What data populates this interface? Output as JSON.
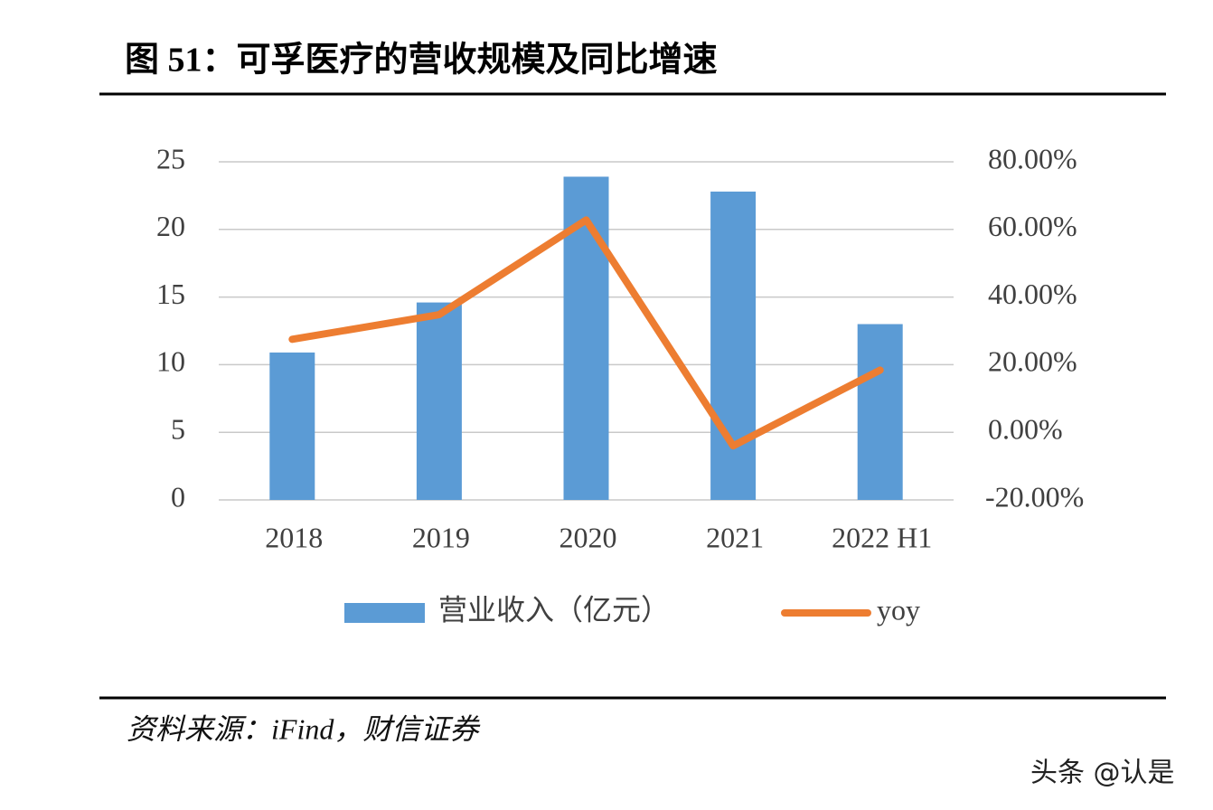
{
  "chart_data": {
    "type": "bar",
    "title": "图 51：可孚医疗的营收规模及同比增速",
    "categories": [
      "2018",
      "2019",
      "2020",
      "2021",
      "2022 H1"
    ],
    "series": [
      {
        "name": "营业收入（亿元）",
        "type": "bar",
        "color": "#5b9bd5",
        "values": [
          10.9,
          14.6,
          23.9,
          22.8,
          13.0
        ]
      },
      {
        "name": "yoy",
        "type": "line",
        "axis": "y2",
        "color": "#ed7d31",
        "values": [
          27.5,
          34.8,
          62.8,
          -4.0,
          18.4
        ]
      }
    ],
    "ylim": [
      0,
      25
    ],
    "yticks": [
      0,
      5,
      10,
      15,
      20,
      25
    ],
    "y2lim": [
      -20,
      80
    ],
    "y2ticks": [
      {
        "value": -20,
        "label": "-20.00%"
      },
      {
        "value": 0,
        "label": "0.00%"
      },
      {
        "value": 20,
        "label": "20.00%"
      },
      {
        "value": 40,
        "label": "40.00%"
      },
      {
        "value": 60,
        "label": "60.00%"
      },
      {
        "value": 80,
        "label": "80.00%"
      }
    ],
    "grid": true,
    "legend": "bottom"
  },
  "source": "资料来源：iFind，财信证券",
  "watermark": "头条 @认是"
}
